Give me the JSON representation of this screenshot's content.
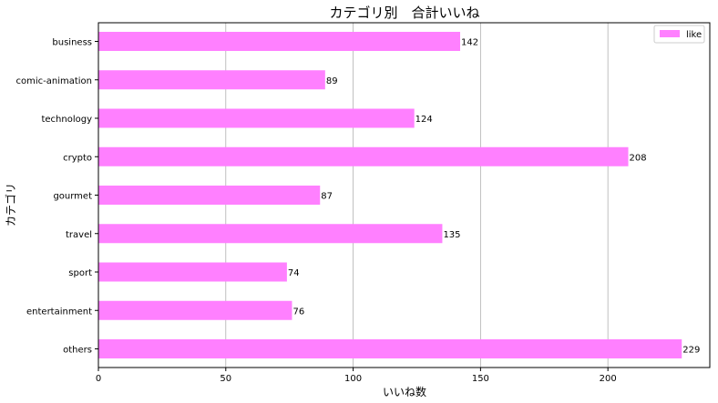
{
  "chart_data": {
    "type": "bar",
    "orientation": "horizontal",
    "title": "カテゴリ別　合計いいね",
    "xlabel": "いいね数",
    "ylabel": "カテゴリ",
    "categories": [
      "business",
      "comic-animation",
      "technology",
      "crypto",
      "gourmet",
      "travel",
      "sport",
      "entertainment",
      "others"
    ],
    "series": [
      {
        "name": "like",
        "values": [
          142,
          89,
          124,
          208,
          87,
          135,
          74,
          76,
          229
        ],
        "color": "#ff80ff"
      }
    ],
    "xlim": [
      0,
      240
    ],
    "xticks": [
      0,
      50,
      100,
      150,
      200
    ],
    "grid": "vertical",
    "legend": "top-right",
    "data_labels": true
  }
}
